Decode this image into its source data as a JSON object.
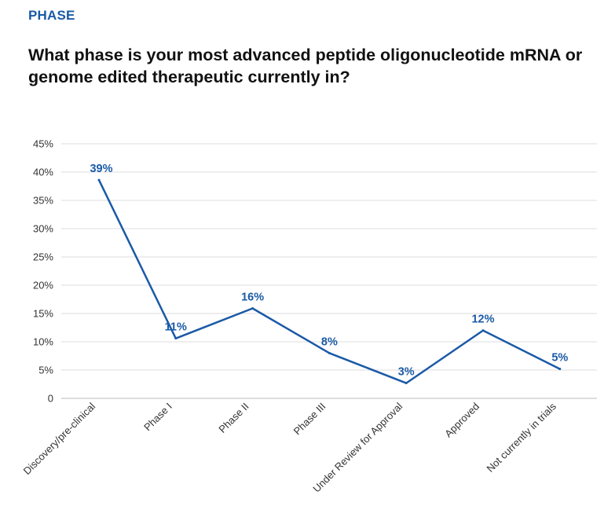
{
  "header": {
    "section": "PHASE",
    "question": "What phase is your most advanced peptide  oligonucleotide  mRNA or genome edited therapeutic currently in?"
  },
  "colors": {
    "accent": "#1a5aa6",
    "grid": "#dddddd",
    "text": "#333333"
  },
  "chart_data": {
    "type": "line",
    "categories": [
      "Discovery/pre-clinical",
      "Phase I",
      "Phase II",
      "Phase III",
      "Under Review for Approval",
      "Approved",
      "Not currently in trials"
    ],
    "values": [
      38.6,
      10.6,
      15.9,
      8.0,
      2.7,
      12.0,
      5.2
    ],
    "data_labels": [
      "39%",
      "11%",
      "16%",
      "8%",
      "3%",
      "12%",
      "5%"
    ],
    "y_ticks": [
      "0",
      "5%",
      "10%",
      "15%",
      "20%",
      "25%",
      "30%",
      "35%",
      "40%",
      "45%"
    ],
    "ylim": [
      0,
      45
    ],
    "grid": true,
    "legend": "none",
    "series_color": "#1a5aa6"
  }
}
